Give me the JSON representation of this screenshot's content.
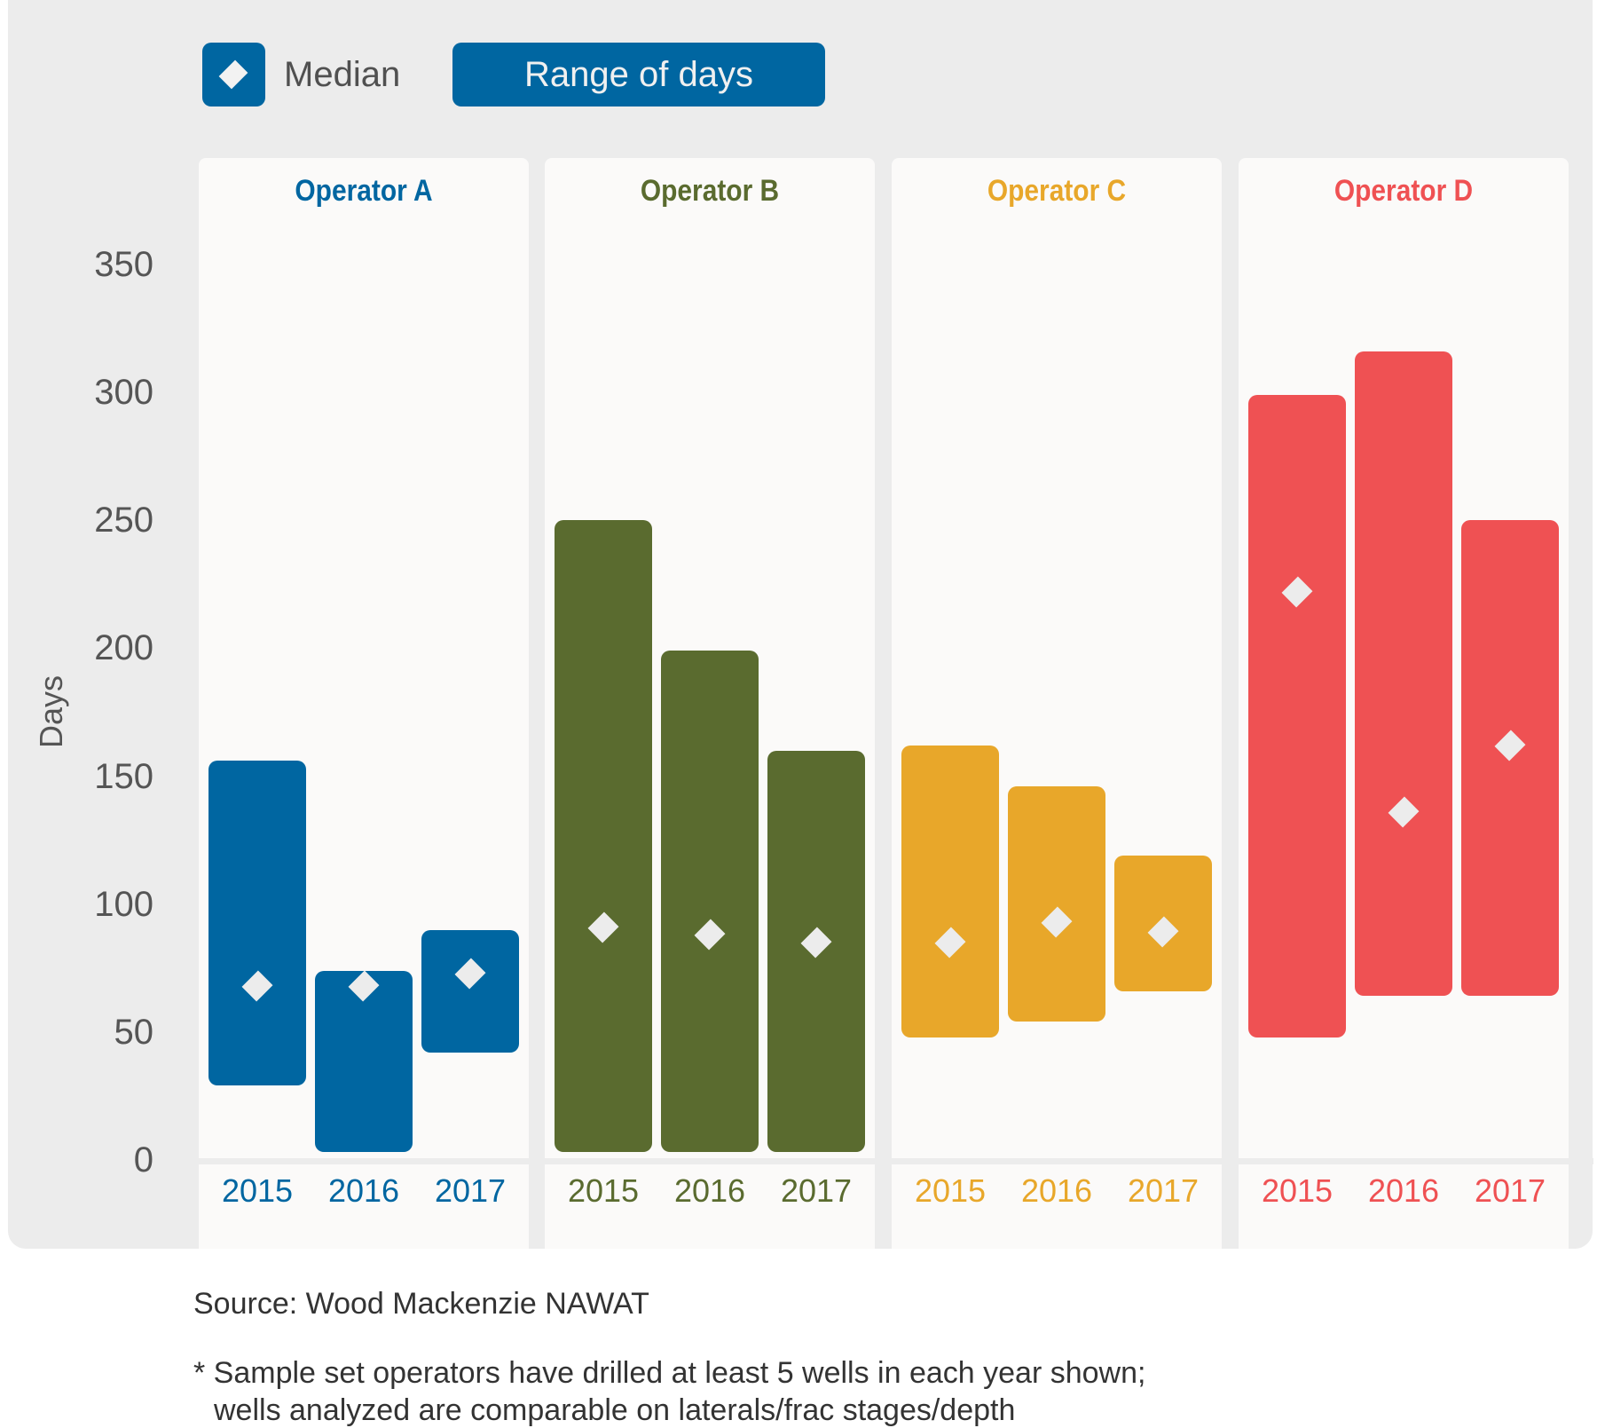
{
  "legend": {
    "median_label": "Median",
    "range_label": "Range of days"
  },
  "footer": {
    "source": "Source: Wood Mackenzie NAWAT",
    "note_line1": "* Sample set operators have drilled at least 5 wells in each year shown;",
    "note_line2": "wells analyzed are comparable on laterals/frac stages/depth"
  },
  "colors": {
    "Operator A": "#0066a1",
    "Operator B": "#5a6b2f",
    "Operator C": "#e8a72a",
    "Operator D": "#ef5153",
    "median_marker": "#ececec"
  },
  "chart_data": {
    "type": "bar",
    "subtype": "floating-range-with-median",
    "title": "",
    "ylabel": "Days",
    "xlabel": "",
    "ylim": [
      0,
      350
    ],
    "yticks": [
      0,
      50,
      100,
      150,
      200,
      250,
      300,
      350
    ],
    "grid": false,
    "legend_position": "top-left",
    "legend": [
      "Median",
      "Range of days"
    ],
    "categories": [
      "2015",
      "2016",
      "2017"
    ],
    "series": [
      {
        "name": "Operator A",
        "ranges": [
          [
            29,
            156
          ],
          [
            3,
            74
          ],
          [
            42,
            90
          ]
        ],
        "medians": [
          68,
          68,
          73
        ]
      },
      {
        "name": "Operator B",
        "ranges": [
          [
            3,
            250
          ],
          [
            3,
            199
          ],
          [
            3,
            160
          ]
        ],
        "medians": [
          91,
          88,
          85
        ]
      },
      {
        "name": "Operator C",
        "ranges": [
          [
            48,
            162
          ],
          [
            54,
            146
          ],
          [
            66,
            119
          ]
        ],
        "medians": [
          85,
          93,
          89
        ]
      },
      {
        "name": "Operator D",
        "ranges": [
          [
            48,
            299
          ],
          [
            64,
            316
          ],
          [
            64,
            250
          ]
        ],
        "medians": [
          222,
          136,
          162
        ]
      }
    ]
  }
}
